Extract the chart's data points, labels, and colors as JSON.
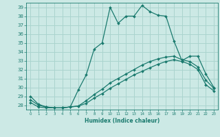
{
  "xlabel": "Humidex (Indice chaleur)",
  "xlim": [
    -0.5,
    23.5
  ],
  "ylim": [
    27.5,
    39.5
  ],
  "yticks": [
    28,
    29,
    30,
    31,
    32,
    33,
    34,
    35,
    36,
    37,
    38,
    39
  ],
  "xticks": [
    0,
    1,
    2,
    3,
    4,
    5,
    6,
    7,
    8,
    9,
    10,
    11,
    12,
    13,
    14,
    15,
    16,
    17,
    18,
    19,
    20,
    21,
    22,
    23
  ],
  "background_color": "#cce9e5",
  "grid_color": "#aad4ce",
  "line_color": "#1a7a6e",
  "line1_x": [
    0,
    1,
    2,
    3,
    4,
    5,
    6,
    7,
    8,
    9,
    10,
    11,
    12,
    13,
    14,
    15,
    16,
    17,
    18,
    19,
    20,
    21,
    22,
    23
  ],
  "line1_y": [
    29.0,
    28.1,
    27.8,
    27.7,
    27.7,
    27.8,
    29.7,
    31.4,
    34.3,
    35.0,
    39.0,
    37.2,
    38.0,
    38.0,
    39.2,
    38.5,
    38.1,
    38.0,
    35.2,
    33.0,
    33.5,
    33.5,
    31.5,
    30.0
  ],
  "line2_x": [
    0,
    1,
    2,
    3,
    4,
    5,
    6,
    7,
    8,
    9,
    10,
    11,
    12,
    13,
    14,
    15,
    16,
    17,
    18,
    19,
    20,
    21,
    22,
    23
  ],
  "line2_y": [
    28.6,
    28.0,
    27.8,
    27.7,
    27.7,
    27.8,
    27.9,
    28.5,
    29.2,
    29.8,
    30.5,
    31.0,
    31.5,
    32.0,
    32.5,
    32.9,
    33.2,
    33.4,
    33.5,
    33.1,
    32.9,
    32.3,
    30.8,
    29.9
  ],
  "line3_x": [
    0,
    1,
    2,
    3,
    4,
    5,
    6,
    7,
    8,
    9,
    10,
    11,
    12,
    13,
    14,
    15,
    16,
    17,
    18,
    19,
    20,
    21,
    22,
    23
  ],
  "line3_y": [
    28.3,
    27.8,
    27.7,
    27.7,
    27.7,
    27.8,
    27.9,
    28.2,
    28.8,
    29.3,
    29.9,
    30.4,
    30.9,
    31.4,
    31.8,
    32.2,
    32.6,
    32.9,
    33.1,
    32.9,
    32.6,
    32.0,
    30.3,
    29.6
  ]
}
